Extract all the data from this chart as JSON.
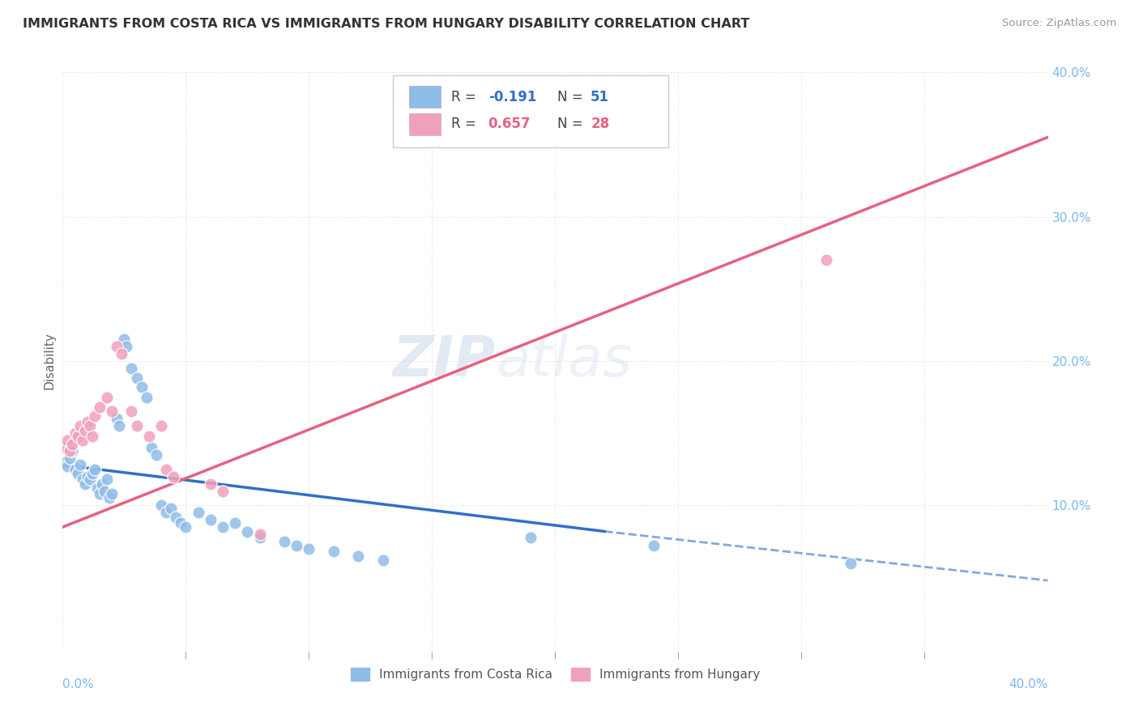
{
  "title": "IMMIGRANTS FROM COSTA RICA VS IMMIGRANTS FROM HUNGARY DISABILITY CORRELATION CHART",
  "source": "Source: ZipAtlas.com",
  "ylabel": "Disability",
  "xlim": [
    0.0,
    0.4
  ],
  "ylim": [
    0.0,
    0.4
  ],
  "watermark_zip": "ZIP",
  "watermark_atlas": "atlas",
  "legend_entries": [
    {
      "r_label": "R = ",
      "r_val": "-0.191",
      "n_label": "  N = ",
      "n_val": "51",
      "color": "#a8c8f0"
    },
    {
      "r_label": "R = ",
      "r_val": "0.657",
      "n_label": "  N = ",
      "n_val": "28",
      "color": "#f5a8c0"
    }
  ],
  "legend_xlabel": [
    "Immigrants from Costa Rica",
    "Immigrants from Hungary"
  ],
  "costa_rica_scatter": [
    [
      0.001,
      0.13
    ],
    [
      0.002,
      0.127
    ],
    [
      0.003,
      0.133
    ],
    [
      0.004,
      0.138
    ],
    [
      0.005,
      0.125
    ],
    [
      0.006,
      0.122
    ],
    [
      0.007,
      0.128
    ],
    [
      0.008,
      0.118
    ],
    [
      0.009,
      0.115
    ],
    [
      0.01,
      0.12
    ],
    [
      0.011,
      0.118
    ],
    [
      0.012,
      0.122
    ],
    [
      0.013,
      0.125
    ],
    [
      0.014,
      0.112
    ],
    [
      0.015,
      0.108
    ],
    [
      0.016,
      0.115
    ],
    [
      0.017,
      0.11
    ],
    [
      0.018,
      0.118
    ],
    [
      0.019,
      0.105
    ],
    [
      0.02,
      0.108
    ],
    [
      0.022,
      0.16
    ],
    [
      0.023,
      0.155
    ],
    [
      0.025,
      0.215
    ],
    [
      0.026,
      0.21
    ],
    [
      0.028,
      0.195
    ],
    [
      0.03,
      0.188
    ],
    [
      0.032,
      0.182
    ],
    [
      0.034,
      0.175
    ],
    [
      0.036,
      0.14
    ],
    [
      0.038,
      0.135
    ],
    [
      0.04,
      0.1
    ],
    [
      0.042,
      0.095
    ],
    [
      0.044,
      0.098
    ],
    [
      0.046,
      0.092
    ],
    [
      0.048,
      0.088
    ],
    [
      0.05,
      0.085
    ],
    [
      0.055,
      0.095
    ],
    [
      0.06,
      0.09
    ],
    [
      0.065,
      0.085
    ],
    [
      0.07,
      0.088
    ],
    [
      0.075,
      0.082
    ],
    [
      0.08,
      0.078
    ],
    [
      0.09,
      0.075
    ],
    [
      0.095,
      0.072
    ],
    [
      0.1,
      0.07
    ],
    [
      0.11,
      0.068
    ],
    [
      0.12,
      0.065
    ],
    [
      0.13,
      0.062
    ],
    [
      0.19,
      0.078
    ],
    [
      0.24,
      0.072
    ],
    [
      0.32,
      0.06
    ]
  ],
  "hungary_scatter": [
    [
      0.001,
      0.14
    ],
    [
      0.002,
      0.145
    ],
    [
      0.003,
      0.138
    ],
    [
      0.004,
      0.142
    ],
    [
      0.005,
      0.15
    ],
    [
      0.006,
      0.148
    ],
    [
      0.007,
      0.155
    ],
    [
      0.008,
      0.145
    ],
    [
      0.009,
      0.152
    ],
    [
      0.01,
      0.158
    ],
    [
      0.011,
      0.155
    ],
    [
      0.012,
      0.148
    ],
    [
      0.013,
      0.162
    ],
    [
      0.015,
      0.168
    ],
    [
      0.018,
      0.175
    ],
    [
      0.02,
      0.165
    ],
    [
      0.022,
      0.21
    ],
    [
      0.024,
      0.205
    ],
    [
      0.028,
      0.165
    ],
    [
      0.03,
      0.155
    ],
    [
      0.035,
      0.148
    ],
    [
      0.04,
      0.155
    ],
    [
      0.042,
      0.125
    ],
    [
      0.045,
      0.12
    ],
    [
      0.06,
      0.115
    ],
    [
      0.065,
      0.11
    ],
    [
      0.08,
      0.08
    ],
    [
      0.31,
      0.27
    ]
  ],
  "costa_rica_line_solid": [
    [
      0.0,
      0.128
    ],
    [
      0.22,
      0.082
    ]
  ],
  "costa_rica_line_dashed": [
    [
      0.22,
      0.082
    ],
    [
      0.4,
      0.048
    ]
  ],
  "hungary_line": [
    [
      0.0,
      0.085
    ],
    [
      0.4,
      0.355
    ]
  ],
  "costa_rica_color": "#90bce8",
  "hungary_color": "#f0a0bb",
  "costa_rica_line_color": "#3070c8",
  "hungary_line_color": "#e86080",
  "grid_color": "#dddddd",
  "grid_style": "dotted",
  "title_color": "#333333",
  "axis_tick_color": "#7ab8f5",
  "ytick_labels": [
    "",
    "10.0%",
    "20.0%",
    "30.0%",
    "40.0%"
  ],
  "ytick_vals": [
    0.0,
    0.1,
    0.2,
    0.3,
    0.4
  ]
}
